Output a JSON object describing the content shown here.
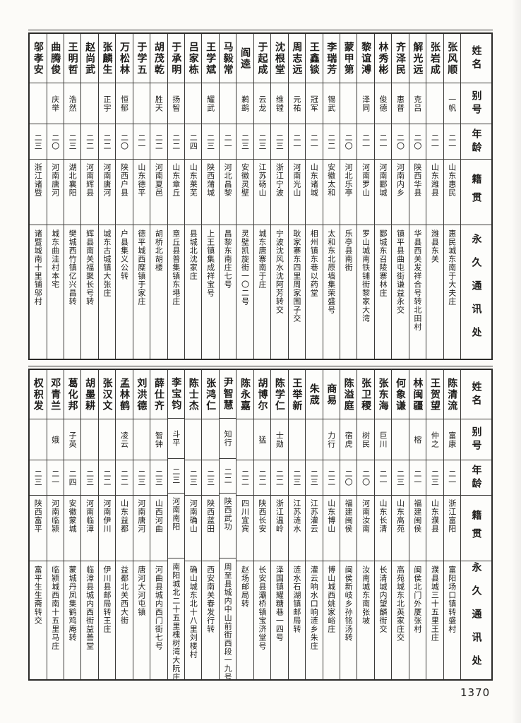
{
  "page_number": "1370",
  "colors": {
    "paper": "#fcfbf8",
    "ink": "#1d1c1a",
    "rule": "#3b3a37"
  },
  "header_labels": {
    "name": "姓名",
    "alias": "别号",
    "age": "年龄",
    "native": "籍贯",
    "address": "永久通讯处"
  },
  "tables": [
    {
      "entries": [
        {
          "name": "张风顺",
          "alias": "一帆",
          "age": "二一",
          "native": "山东惠民",
          "address": "惠民城东南于大夫庄"
        },
        {
          "name": "张岩成",
          "alias": "",
          "age": "二一",
          "native": "山东潍县",
          "address": "潍县东关"
        },
        {
          "name": "解光远",
          "alias": "克吕",
          "age": "二〇",
          "native": "陕西华县",
          "address": "华县西关发祥合号转北田村"
        },
        {
          "name": "齐泽民",
          "alias": "惠普",
          "age": "二〇",
          "native": "河南内乡",
          "address": "镇平县曲屯街谦益永交"
        },
        {
          "name": "林秀彬",
          "alias": "俊德",
          "age": "二一",
          "native": "河南郾城",
          "address": "郾城东召陵寨林庄"
        },
        {
          "name": "黎谊溥",
          "alias": "泽同",
          "age": "二一",
          "native": "河南罗山",
          "address": "罗山城南铁铺街黎家大湾"
        },
        {
          "name": "蒙甲第",
          "alias": "",
          "age": "二〇",
          "native": "河北乐亭",
          "address": "乐亭县南街"
        },
        {
          "name": "李瑞芳",
          "alias": "锡武",
          "age": "二二",
          "native": "安徽太和",
          "address": "太和东北原墙集荣盛号"
        },
        {
          "name": "王鑫锬",
          "alias": "冠军",
          "age": "二一",
          "native": "山东诸城",
          "address": "相州镇东巷以药堂"
        },
        {
          "name": "周志远",
          "alias": "元祐",
          "age": "二一",
          "native": "河南光山",
          "address": "耿家寨东四里周家围子交"
        },
        {
          "name": "沈根堂",
          "alias": "维镗",
          "age": "二三",
          "native": "浙江宁波",
          "address": "宁波沈风水沈阿芳转交"
        },
        {
          "name": "于起成",
          "alias": "云龙",
          "age": "二三",
          "native": "江苏砀山",
          "address": "城东唐寨南于庄"
        },
        {
          "name": "阎逵",
          "alias": "鹣鹚",
          "age": "二三",
          "native": "安徽灵壁",
          "address": "灵壁凯旋街一〇二号"
        },
        {
          "name": "马毅常",
          "alias": "",
          "age": "二一",
          "native": "河北昌黎",
          "address": "昌黎东南庄七号"
        },
        {
          "name": "王学斌",
          "alias": "耀武",
          "age": "二三",
          "native": "陕西蒲城",
          "address": "上王镇集成祥宝号"
        },
        {
          "name": "吕家栋",
          "alias": "",
          "age": "二四",
          "native": "山东莱芜",
          "address": "县城北沈家庄"
        },
        {
          "name": "于承明",
          "alias": "扬智",
          "age": "二二",
          "native": "山东章丘",
          "address": "章丘县普集镇东塂庄"
        },
        {
          "name": "胡茂乾",
          "alias": "胜天",
          "age": "二二",
          "native": "河南夏邑",
          "address": "胡桥北胡楼"
        },
        {
          "name": "于学五",
          "alias": "",
          "age": "二一",
          "native": "山东德平",
          "address": "德平城西糜镇于家庄"
        },
        {
          "name": "万松林",
          "alias": "恒郁",
          "age": "二〇",
          "native": "陕西户县",
          "address": "户县集义公转"
        },
        {
          "name": "张麟生",
          "alias": "正宇",
          "age": "二二",
          "native": "河南唐河",
          "address": "城东古城镇大张庄"
        },
        {
          "name": "赵尚武",
          "alias": "",
          "age": "二二",
          "native": "河南辉县",
          "address": "辉县南关福聚长号转"
        },
        {
          "name": "王明哲",
          "alias": "浩然",
          "age": "二三",
          "native": "湖北襄阳",
          "address": "樊城西竹镇亿兴昌转"
        },
        {
          "name": "曲腾俊",
          "alias": "庆举",
          "age": "二〇",
          "native": "河南唐河",
          "address": "城东曲洼村本宅"
        },
        {
          "name": "邬孝安",
          "alias": "",
          "age": "二三",
          "native": "浙江诸暨",
          "address": "诸暨城南十里铺邬村"
        }
      ]
    },
    {
      "entries": [
        {
          "name": "陈清流",
          "alias": "富康",
          "age": "二一",
          "native": "浙江富阳",
          "address": "富阳场口镇转盛村"
        },
        {
          "name": "王贺望",
          "alias": "仲之",
          "age": "二三",
          "native": "山东濮县",
          "address": "濮县城三十五里王庄"
        },
        {
          "name": "林闽疆",
          "alias": "榕",
          "age": "二一",
          "native": "福建闽侯",
          "address": "闽侯北门外厦张村"
        },
        {
          "name": "何象谦",
          "alias": "",
          "age": "二三",
          "native": "山东高苑",
          "address": "高苑城东北英家庄交"
        },
        {
          "name": "张东海",
          "alias": "巨川",
          "age": "二一",
          "native": "山东长清",
          "address": "长清城内望麟街交"
        },
        {
          "name": "张卫稷",
          "alias": "树民",
          "age": "二〇",
          "native": "河南汝南",
          "address": "汝南城东南张坡"
        },
        {
          "name": "陈溢庭",
          "alias": "宿虎",
          "age": "二〇",
          "native": "福建闽侯",
          "address": "闽侯新岐乡孙铭汤转"
        },
        {
          "name": "商易",
          "alias": "力行",
          "age": "二二",
          "native": "山东博山",
          "address": "博山城西姚家峪庄"
        },
        {
          "name": "朱荿",
          "alias": "",
          "age": "二三",
          "native": "江苏灌云",
          "address": "灌云响水口响涟乡朱庄"
        },
        {
          "name": "王举新",
          "alias": "",
          "age": "二三",
          "native": "江苏涟水",
          "address": "涟水石湖镇邮局转"
        },
        {
          "name": "陈学仁",
          "alias": "士勋",
          "age": "二二",
          "native": "浙江温岭",
          "address": "泽国镇耀糖巷一四号"
        },
        {
          "name": "胡博尔",
          "alias": "猛",
          "age": "二二",
          "native": "陕西长安",
          "address": "长安县灞桥镇宝济堂号"
        },
        {
          "name": "陈永嘉",
          "alias": "",
          "age": "二二",
          "native": "四川宜宾",
          "address": "赵场邮局转"
        },
        {
          "name": "尹智慧",
          "alias": "知行",
          "age": "二二",
          "native": "陕西武功",
          "address": "周至县城内中山前街西段一九号"
        },
        {
          "name": "张鸿仁",
          "alias": "",
          "age": "二三",
          "native": "陕西蓝田",
          "address": "西安南关春发行转"
        },
        {
          "name": "陈士杰",
          "alias": "",
          "age": "二三",
          "native": "河南确山",
          "address": "确山城东北十八里刘楼村"
        },
        {
          "name": "李宝钧",
          "alias": "斗平",
          "age": "二三",
          "native": "河南南阳",
          "address": "南阳城北二十五里槐树湾大阮庄"
        },
        {
          "name": "薛仕齐",
          "alias": "智钟",
          "age": "二三",
          "native": "山西河曲",
          "address": "河曲县城内西门街七号"
        },
        {
          "name": "刘洪德",
          "alias": "",
          "age": "二三",
          "native": "河南唐河",
          "address": "唐河大河屯镇"
        },
        {
          "name": "孟林鹤",
          "alias": "凌云",
          "age": "二二",
          "native": "山东益都",
          "address": "益都北关西大街"
        },
        {
          "name": "张汉文",
          "alias": "",
          "age": "二二",
          "native": "河南伊川",
          "address": "伊川县邮局转王庄"
        },
        {
          "name": "胡墨耕",
          "alias": "",
          "age": "二三",
          "native": "河南临漳",
          "address": "临漳县城内西街益善堂"
        },
        {
          "name": "葛化邦",
          "alias": "子英",
          "age": "二四",
          "native": "安徽蒙城",
          "address": "蒙城丹凤集鹤鸡庵转"
        },
        {
          "name": "邓青兰",
          "alias": "娥",
          "age": "二一",
          "native": "河南临颍",
          "address": "临颍城西南十五里马庄"
        },
        {
          "name": "权积发",
          "alias": "",
          "age": "二三",
          "native": "陕西富平",
          "address": "富平生生斋转交"
        }
      ]
    }
  ]
}
